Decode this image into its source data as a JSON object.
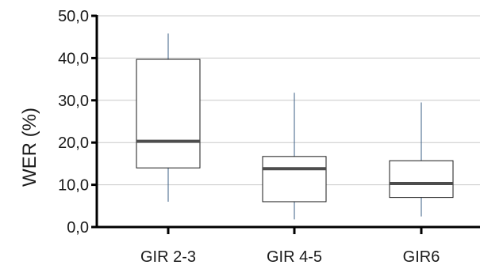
{
  "chart_data": {
    "type": "box",
    "categories": [
      "GIR 2-3",
      "GIR 4-5",
      "GIR6"
    ],
    "ylabel": "WER (%)",
    "ylim": [
      0,
      50
    ],
    "yticks": [
      "0,0",
      "10,0",
      "20,0",
      "30,0",
      "40,0",
      "50,0"
    ],
    "grid": true,
    "boxes": [
      {
        "category": "GIR 2-3",
        "min": 6.0,
        "q1": 14.0,
        "median": 20.3,
        "q3": 39.7,
        "max": 45.8
      },
      {
        "category": "GIR 4-5",
        "min": 1.8,
        "q1": 6.0,
        "median": 13.8,
        "q3": 16.7,
        "max": 31.8
      },
      {
        "category": "GIR6",
        "min": 2.5,
        "q1": 7.0,
        "median": 10.3,
        "q3": 15.7,
        "max": 29.5
      }
    ],
    "colors": {
      "box_edge": "#1a1a1a",
      "median": "#4d4d4d",
      "whisker": "#3b5f86",
      "grid": "#c8c8c8",
      "axis": "#000000"
    }
  }
}
